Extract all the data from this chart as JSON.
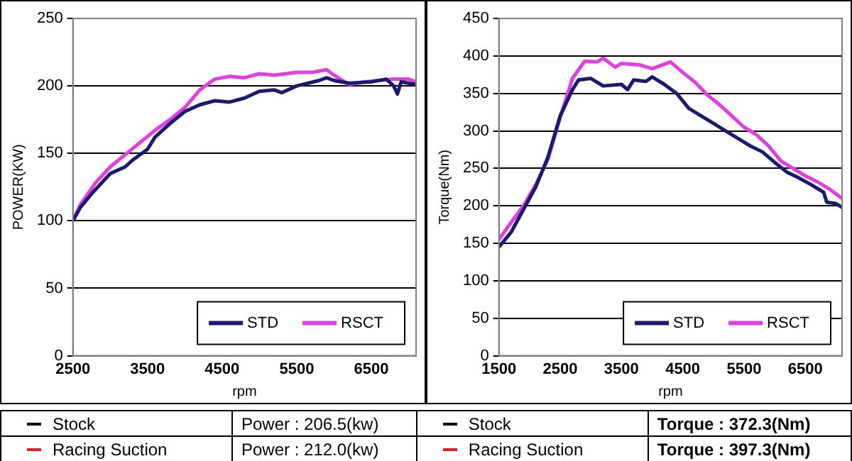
{
  "chart_data": [
    {
      "type": "line",
      "xlabel": "rpm",
      "ylabel": "POWER(KW)",
      "xlim": [
        2500,
        7100
      ],
      "xticks": [
        2500,
        3500,
        4500,
        5500,
        6500
      ],
      "ylim": [
        0,
        250
      ],
      "yticks": [
        0,
        50,
        100,
        150,
        200,
        250
      ],
      "grid": "y",
      "legend": "bottom right",
      "marker": "none",
      "line_style": "solid",
      "series": [
        {
          "name": "STD",
          "color": "#1a1a6e",
          "x": [
            2500,
            2600,
            2750,
            3000,
            3200,
            3300,
            3500,
            3600,
            3800,
            4000,
            4200,
            4400,
            4600,
            4800,
            5000,
            5200,
            5300,
            5500,
            5800,
            5900,
            6000,
            6200,
            6500,
            6700,
            6800,
            6850,
            6900,
            7100
          ],
          "values": [
            100,
            110,
            120,
            135,
            140,
            145,
            153,
            162,
            172,
            181,
            186,
            189,
            188,
            191,
            196,
            197,
            195,
            200,
            204,
            206,
            204,
            202,
            203,
            205,
            200,
            194,
            203,
            201
          ]
        },
        {
          "name": "RSCT",
          "color": "#e040e0",
          "x": [
            2500,
            2600,
            2800,
            3000,
            3200,
            3400,
            3600,
            3800,
            4000,
            4200,
            4400,
            4600,
            4800,
            5000,
            5200,
            5500,
            5700,
            5900,
            6000,
            6200,
            6400,
            6600,
            6800,
            7000,
            7100
          ],
          "values": [
            100,
            112,
            128,
            140,
            149,
            158,
            167,
            175,
            184,
            197,
            205,
            207,
            206,
            209,
            208,
            210,
            210,
            212,
            208,
            201,
            203,
            204,
            205,
            205,
            203
          ]
        }
      ],
      "annotations": [
        "Stock",
        "Power : 206.5(kw)",
        "Racing Suction",
        "Power : 212.0(kw)"
      ]
    },
    {
      "type": "line",
      "xlabel": "rpm",
      "ylabel": "Torque(Nm)",
      "xlim": [
        1500,
        7100
      ],
      "xticks": [
        1500,
        2500,
        3500,
        4500,
        5500,
        6500
      ],
      "ylim": [
        0,
        450
      ],
      "yticks": [
        0,
        50,
        100,
        150,
        200,
        250,
        300,
        350,
        400,
        450
      ],
      "grid": "y",
      "legend": "bottom right",
      "marker": "none",
      "line_style": "solid",
      "series": [
        {
          "name": "STD",
          "color": "#1a1a6e",
          "x": [
            1500,
            1700,
            1900,
            2100,
            2300,
            2500,
            2700,
            2800,
            3000,
            3200,
            3500,
            3600,
            3700,
            3900,
            4000,
            4200,
            4400,
            4600,
            4800,
            5000,
            5200,
            5400,
            5600,
            5800,
            6000,
            6200,
            6400,
            6600,
            6800,
            6850,
            7000,
            7100
          ],
          "values": [
            145,
            165,
            195,
            225,
            265,
            320,
            355,
            368,
            370,
            360,
            362,
            355,
            368,
            366,
            372,
            362,
            350,
            330,
            320,
            310,
            300,
            290,
            280,
            272,
            258,
            245,
            237,
            228,
            218,
            205,
            203,
            198
          ]
        },
        {
          "name": "RSCT",
          "color": "#e040e0",
          "x": [
            1500,
            1700,
            1900,
            2100,
            2300,
            2500,
            2700,
            2900,
            3100,
            3200,
            3400,
            3500,
            3800,
            4000,
            4300,
            4500,
            4700,
            4900,
            5100,
            5300,
            5500,
            5700,
            5900,
            6100,
            6300,
            6500,
            6700,
            6900,
            7100
          ],
          "values": [
            155,
            178,
            200,
            228,
            262,
            318,
            370,
            393,
            392,
            397,
            385,
            390,
            388,
            383,
            392,
            378,
            365,
            348,
            335,
            320,
            305,
            295,
            280,
            260,
            250,
            240,
            232,
            222,
            210
          ]
        }
      ],
      "annotations": [
        "Stock",
        "Torque : 372.3(Nm)",
        "Racing Suction",
        "Torque : 397.3(Nm)"
      ]
    }
  ]
}
